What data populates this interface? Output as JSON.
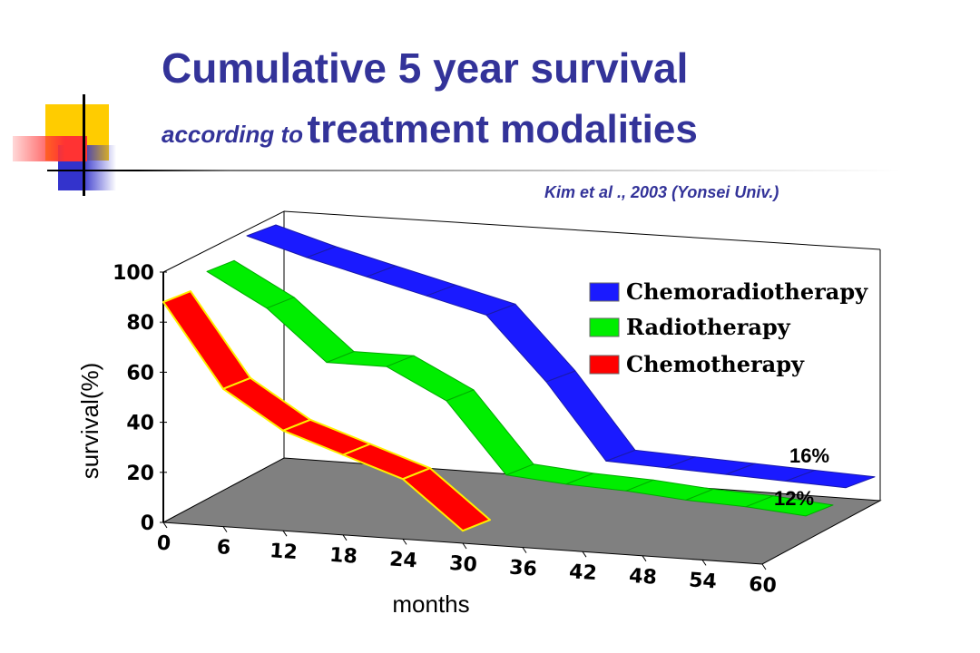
{
  "title_line1": "Cumulative 5 year survival",
  "title_line2_small": "according to",
  "title_line2_big": "treatment modalities",
  "citation": "Kim et al ., 2003  (Yonsei Univ.)",
  "chart_data": {
    "type": "line",
    "style": "3d-ribbon",
    "xlabel": "months",
    "ylabel": "survival(%)",
    "x": [
      0,
      6,
      12,
      18,
      24,
      30,
      36,
      42,
      48,
      54,
      60
    ],
    "x_tick_labels": [
      "0",
      "6",
      "12",
      "18",
      "24",
      "30",
      "36",
      "42",
      "48",
      "54",
      "60"
    ],
    "y_tick_labels": [
      "0",
      "20",
      "40",
      "60",
      "80",
      "100"
    ],
    "ylim": [
      0,
      100
    ],
    "grid": false,
    "legend_position": "upper-right",
    "series": [
      {
        "name": "Chemoradiotherapy",
        "color": "#1a1aff",
        "x": [
          0,
          6,
          12,
          18,
          24,
          30,
          36,
          42,
          48,
          54,
          60
        ],
        "values": [
          100,
          93,
          87,
          81,
          75,
          50,
          20,
          19,
          18,
          17,
          16
        ]
      },
      {
        "name": "Radiotherapy",
        "color": "#00ee00",
        "x": [
          0,
          6,
          12,
          18,
          24,
          30,
          36,
          42,
          48,
          54,
          60
        ],
        "values": [
          93,
          80,
          60,
          60,
          48,
          20,
          18,
          17,
          15,
          14,
          12
        ]
      },
      {
        "name": "Chemotherapy",
        "color": "#ff0000",
        "x": [
          0,
          6,
          12,
          18,
          24,
          30
        ],
        "values": [
          88,
          55,
          40,
          32,
          24,
          5
        ]
      }
    ],
    "end_labels": [
      "16%",
      "12%"
    ]
  }
}
